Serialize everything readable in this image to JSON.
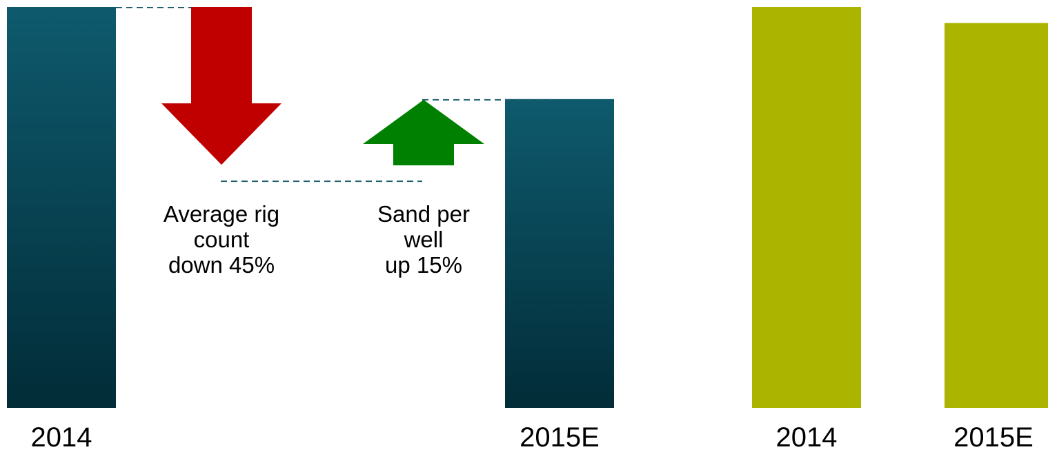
{
  "chart_data": [
    {
      "type": "bar",
      "categories": [
        "2014",
        "2015E"
      ],
      "values": [
        100,
        77
      ],
      "ylim": [
        0,
        100
      ],
      "colors": {
        "bar": "#0e5a6d",
        "bar_dark": "#022c38",
        "down_arrow": "#c00000",
        "up_arrow": "#008000",
        "dashed_line": "#1f5f6e"
      },
      "annotations": [
        {
          "lines": [
            "Average rig",
            "count",
            "down 45%"
          ],
          "change_pct": -45,
          "arrow": "down"
        },
        {
          "lines": [
            "Sand per",
            "well",
            "up 15%"
          ],
          "change_pct": 15,
          "arrow": "up"
        }
      ]
    },
    {
      "type": "bar",
      "categories": [
        "2014",
        "2015E"
      ],
      "values": [
        100,
        96
      ],
      "ylim": [
        0,
        100
      ],
      "colors": {
        "bar": "#abb500"
      }
    }
  ]
}
